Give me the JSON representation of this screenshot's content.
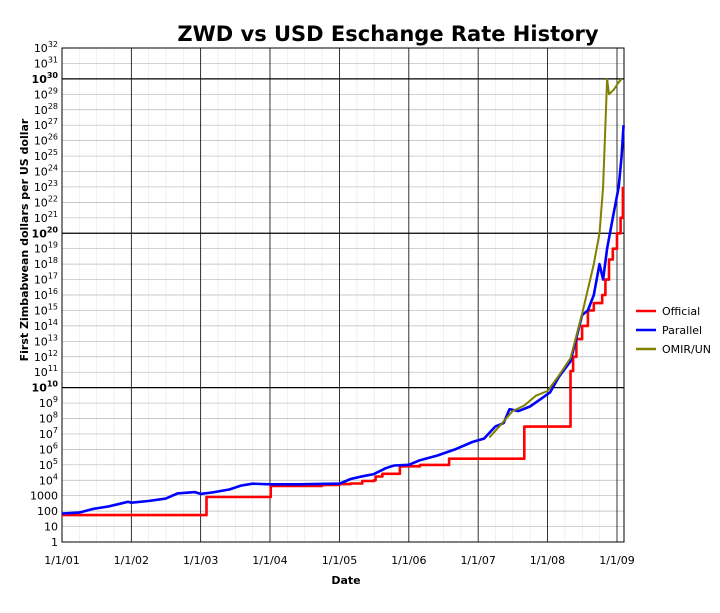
{
  "chart_data": {
    "type": "line",
    "title": "ZWD vs USD Eschange Rate History",
    "xlabel": "Date",
    "ylabel": "First Zimbabwean dollars per US dollar",
    "y_scale": "log",
    "ylim_log10": [
      0,
      32
    ],
    "xlim": [
      "2001-01-01",
      "2009-03-01"
    ],
    "x_ticks": [
      {
        "label": "1/1/01",
        "date": "2001-01-01"
      },
      {
        "label": "1/1/02",
        "date": "2002-01-01"
      },
      {
        "label": "1/1/03",
        "date": "2003-01-01"
      },
      {
        "label": "1/1/04",
        "date": "2004-01-01"
      },
      {
        "label": "1/1/05",
        "date": "2005-01-01"
      },
      {
        "label": "1/1/06",
        "date": "2006-01-01"
      },
      {
        "label": "1/1/07",
        "date": "2007-01-01"
      },
      {
        "label": "1/1/08",
        "date": "2008-01-01"
      },
      {
        "label": "1/1/09",
        "date": "2009-01-01"
      }
    ],
    "y_ticks": [
      {
        "exp": 0,
        "label": "1"
      },
      {
        "exp": 1,
        "label": "10"
      },
      {
        "exp": 2,
        "label": "100"
      },
      {
        "exp": 3,
        "label": "1000"
      },
      {
        "exp": 4,
        "label": "10",
        "sup": "4"
      },
      {
        "exp": 5,
        "label": "10",
        "sup": "5"
      },
      {
        "exp": 6,
        "label": "10",
        "sup": "6"
      },
      {
        "exp": 7,
        "label": "10",
        "sup": "7"
      },
      {
        "exp": 8,
        "label": "10",
        "sup": "8"
      },
      {
        "exp": 9,
        "label": "10",
        "sup": "9"
      },
      {
        "exp": 10,
        "label": "10",
        "sup": "10",
        "bold": true
      },
      {
        "exp": 11,
        "label": "10",
        "sup": "11"
      },
      {
        "exp": 12,
        "label": "10",
        "sup": "12"
      },
      {
        "exp": 13,
        "label": "10",
        "sup": "13"
      },
      {
        "exp": 14,
        "label": "10",
        "sup": "14"
      },
      {
        "exp": 15,
        "label": "10",
        "sup": "15"
      },
      {
        "exp": 16,
        "label": "10",
        "sup": "16"
      },
      {
        "exp": 17,
        "label": "10",
        "sup": "17"
      },
      {
        "exp": 18,
        "label": "10",
        "sup": "18"
      },
      {
        "exp": 19,
        "label": "10",
        "sup": "19"
      },
      {
        "exp": 20,
        "label": "10",
        "sup": "20",
        "bold": true
      },
      {
        "exp": 21,
        "label": "10",
        "sup": "21"
      },
      {
        "exp": 22,
        "label": "10",
        "sup": "22"
      },
      {
        "exp": 23,
        "label": "10",
        "sup": "23"
      },
      {
        "exp": 24,
        "label": "10",
        "sup": "24"
      },
      {
        "exp": 25,
        "label": "10",
        "sup": "25"
      },
      {
        "exp": 26,
        "label": "10",
        "sup": "26"
      },
      {
        "exp": 27,
        "label": "10",
        "sup": "27"
      },
      {
        "exp": 28,
        "label": "10",
        "sup": "28"
      },
      {
        "exp": 29,
        "label": "10",
        "sup": "29"
      },
      {
        "exp": 30,
        "label": "10",
        "sup": "30",
        "bold": true
      },
      {
        "exp": 31,
        "label": "10",
        "sup": "31"
      },
      {
        "exp": 32,
        "label": "10",
        "sup": "32"
      }
    ],
    "legend_position": "right",
    "series": [
      {
        "name": "Official",
        "color": "#ff0000",
        "points": [
          [
            "2001-01-01",
            55
          ],
          [
            "2002-06-01",
            55
          ],
          [
            "2002-12-31",
            55
          ],
          [
            "2003-02-01",
            824
          ],
          [
            "2003-06-01",
            824
          ],
          [
            "2003-12-31",
            824
          ],
          [
            "2004-01-05",
            4300
          ],
          [
            "2004-10-01",
            5000
          ],
          [
            "2004-12-31",
            5600
          ],
          [
            "2005-03-01",
            6200
          ],
          [
            "2005-05-01",
            9000
          ],
          [
            "2005-07-01",
            10000
          ],
          [
            "2005-07-10",
            17600
          ],
          [
            "2005-08-15",
            26000
          ],
          [
            "2005-10-01",
            26000
          ],
          [
            "2005-11-15",
            80000
          ],
          [
            "2006-03-01",
            99000
          ],
          [
            "2006-07-15",
            99000
          ],
          [
            "2006-08-01",
            250000
          ],
          [
            "2007-02-01",
            250000
          ],
          [
            "2007-08-15",
            250000
          ],
          [
            "2007-09-01",
            30000000
          ],
          [
            "2008-04-15",
            30000000
          ],
          [
            "2008-05-01",
            120000000000.0
          ],
          [
            "2008-05-15",
            1000000000000.0
          ],
          [
            "2008-06-01",
            14000000000000.0
          ],
          [
            "2008-07-01",
            100000000000000.0
          ],
          [
            "2008-08-01",
            1000000000000000.0
          ],
          [
            "2008-09-01",
            3000000000000000.0
          ],
          [
            "2008-10-15",
            1e+16
          ],
          [
            "2008-11-01",
            1e+17
          ],
          [
            "2008-11-20",
            2e+18
          ],
          [
            "2008-12-10",
            1e+19
          ],
          [
            "2009-01-01",
            1e+20
          ],
          [
            "2009-01-20",
            1e+21
          ],
          [
            "2009-02-01",
            1e+23
          ]
        ]
      },
      {
        "name": "Parallel",
        "color": "#0000ff",
        "points": [
          [
            "2001-01-01",
            70
          ],
          [
            "2001-04-01",
            80
          ],
          [
            "2001-06-15",
            140
          ],
          [
            "2001-09-01",
            200
          ],
          [
            "2001-11-01",
            300
          ],
          [
            "2001-12-15",
            400
          ],
          [
            "2002-01-01",
            350
          ],
          [
            "2002-04-01",
            450
          ],
          [
            "2002-07-01",
            650
          ],
          [
            "2002-09-01",
            1400
          ],
          [
            "2002-12-01",
            1700
          ],
          [
            "2003-01-01",
            1300
          ],
          [
            "2003-03-01",
            1600
          ],
          [
            "2003-06-01",
            2500
          ],
          [
            "2003-08-01",
            4500
          ],
          [
            "2003-10-01",
            6000
          ],
          [
            "2004-01-01",
            5500
          ],
          [
            "2004-06-01",
            5500
          ],
          [
            "2004-12-01",
            6000
          ],
          [
            "2005-01-01",
            6000
          ],
          [
            "2005-03-01",
            12000
          ],
          [
            "2005-05-01",
            18000
          ],
          [
            "2005-07-01",
            25000
          ],
          [
            "2005-09-01",
            60000
          ],
          [
            "2005-10-15",
            90000
          ],
          [
            "2006-01-01",
            100000
          ],
          [
            "2006-03-01",
            200000
          ],
          [
            "2006-06-01",
            400000
          ],
          [
            "2006-09-01",
            1000000
          ],
          [
            "2006-12-01",
            3000000
          ],
          [
            "2007-02-01",
            5000000
          ],
          [
            "2007-04-01",
            30000000
          ],
          [
            "2007-05-15",
            50000000
          ],
          [
            "2007-06-15",
            400000000
          ],
          [
            "2007-08-01",
            300000000
          ],
          [
            "2007-10-01",
            600000000
          ],
          [
            "2007-12-01",
            2000000000
          ],
          [
            "2008-01-15",
            5000000000
          ],
          [
            "2008-03-01",
            50000000000
          ],
          [
            "2008-05-01",
            500000000000.0
          ],
          [
            "2008-07-01",
            500000000000000.0
          ],
          [
            "2008-08-01",
            1000000000000000.0
          ],
          [
            "2008-09-01",
            1e+16
          ],
          [
            "2008-10-01",
            1e+18
          ],
          [
            "2008-10-20",
            1e+17
          ],
          [
            "2008-11-10",
            1e+19
          ],
          [
            "2008-12-10",
            1e+21
          ],
          [
            "2009-01-10",
            1e+23
          ],
          [
            "2009-01-25",
            1e+25
          ],
          [
            "2009-02-05",
            1e+27
          ]
        ]
      },
      {
        "name": "OMIR/UN",
        "color": "#808000",
        "points": [
          [
            "2007-03-01",
            6000000
          ],
          [
            "2007-05-01",
            40000000
          ],
          [
            "2007-07-01",
            300000000
          ],
          [
            "2007-09-01",
            700000000
          ],
          [
            "2007-11-01",
            3000000000
          ],
          [
            "2008-01-01",
            6000000000
          ],
          [
            "2008-03-01",
            60000000000
          ],
          [
            "2008-05-01",
            800000000000.0
          ],
          [
            "2008-07-01",
            600000000000000.0
          ],
          [
            "2008-09-01",
            1e+18
          ],
          [
            "2008-10-01",
            1e+20
          ],
          [
            "2008-10-20",
            1e+23
          ],
          [
            "2008-11-01",
            1e+27
          ],
          [
            "2008-11-10",
            1e+30
          ],
          [
            "2008-11-20",
            1e+29
          ],
          [
            "2008-12-15",
            2e+29
          ],
          [
            "2009-01-05",
            5e+29
          ],
          [
            "2009-01-25",
            1e+30
          ]
        ]
      }
    ]
  }
}
